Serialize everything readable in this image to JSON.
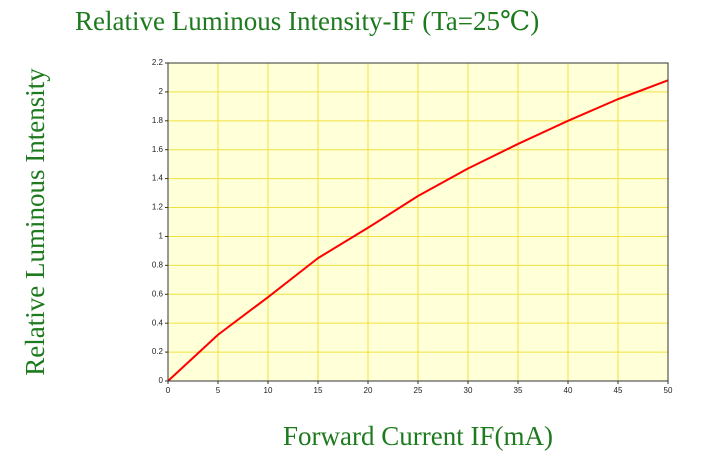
{
  "chart_data": {
    "type": "line",
    "title": "Relative Luminous Intensity-IF (Ta=25℃)",
    "xlabel": "Forward Current IF(mA)",
    "ylabel": "Relative Luminous Intensity",
    "x": [
      0,
      5,
      10,
      15,
      20,
      25,
      30,
      35,
      40,
      45,
      50
    ],
    "series": [
      {
        "name": null,
        "color": "#ff0000",
        "values": [
          0,
          0.32,
          0.58,
          0.85,
          1.06,
          1.28,
          1.47,
          1.64,
          1.8,
          1.95,
          2.08
        ]
      }
    ],
    "xlim": [
      0,
      50
    ],
    "xticks": [
      0,
      5,
      10,
      15,
      20,
      25,
      30,
      35,
      40,
      45,
      50
    ],
    "ylim": [
      0,
      2.2
    ],
    "yticks": [
      0,
      0.2,
      0.4,
      0.6,
      0.8,
      1,
      1.2,
      1.4,
      1.6,
      1.8,
      2,
      2.2
    ],
    "grid": true
  }
}
